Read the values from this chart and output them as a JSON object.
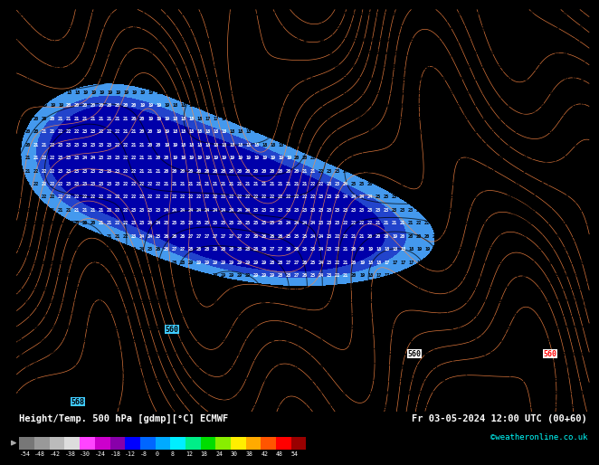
{
  "title_left": "Height/Temp. 500 hPa [gdmp][°C] ECMWF",
  "title_right": "Fr 03-05-2024 12:00 UTC (00+60)",
  "credit": "©weatheronline.co.uk",
  "bg_color": "#40ccff",
  "dark_blue_color": "#0000aa",
  "mid_blue_color": "#2244cc",
  "light_blue_color": "#4499ee",
  "orange_contour_color": "#ff8844",
  "black_contour_color": "#000000",
  "text_color_map": "#000000",
  "text_color_blue": "#000000",
  "colorbar_colors": [
    "#777777",
    "#999999",
    "#bbbbbb",
    "#dddddd",
    "#ff44ff",
    "#cc00cc",
    "#8800aa",
    "#0000ff",
    "#0066ff",
    "#00aaff",
    "#00eeff",
    "#00ee88",
    "#00dd00",
    "#88ee00",
    "#ffee00",
    "#ffaa00",
    "#ff5500",
    "#ff0000",
    "#990000"
  ],
  "colorbar_labels": [
    "-54",
    "-48",
    "-42",
    "-38",
    "-30",
    "-24",
    "-18",
    "-12",
    "-8",
    "0",
    "8",
    "12",
    "18",
    "24",
    "30",
    "38",
    "42",
    "48",
    "54"
  ]
}
